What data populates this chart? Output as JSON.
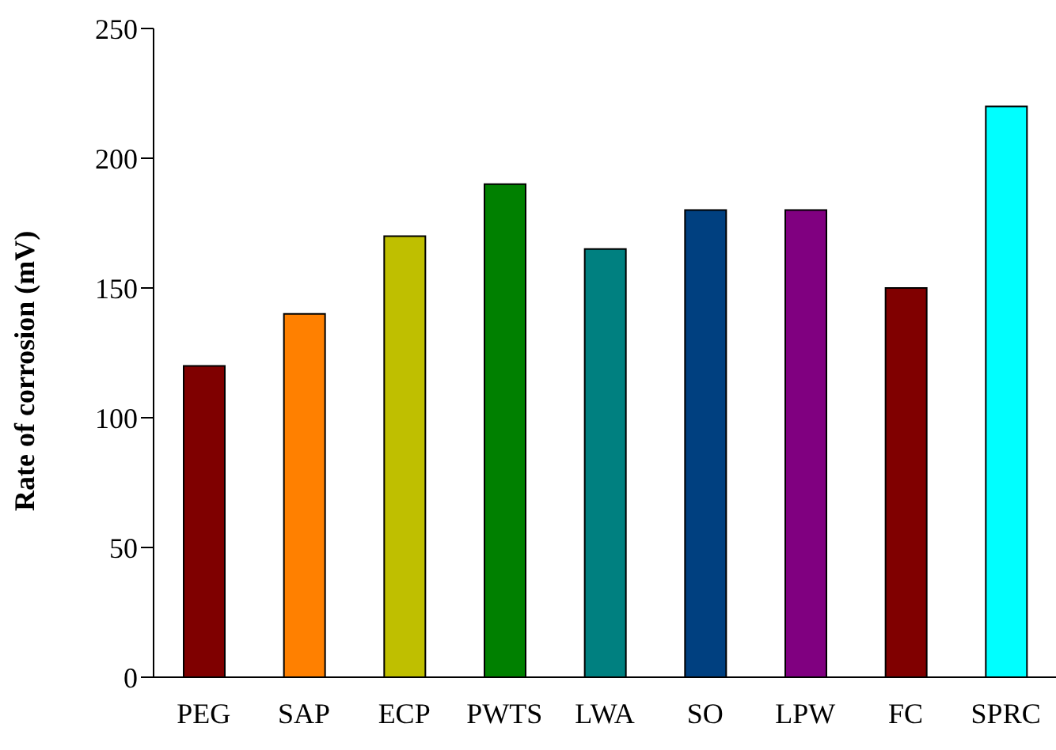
{
  "chart_data": {
    "type": "bar",
    "ylabel": "Rate of corrosion (mV)",
    "categories": [
      "PEG",
      "SAP",
      "ECP",
      "PWTS",
      "LWA",
      "SO",
      "LPW",
      "FC",
      "SPRC"
    ],
    "values": [
      120,
      140,
      170,
      190,
      165,
      180,
      180,
      150,
      220
    ],
    "colors": [
      "#7f0000",
      "#ff8000",
      "#bfbf00",
      "#008000",
      "#008080",
      "#004080",
      "#800080",
      "#800000",
      "#00ffff"
    ],
    "ylim": [
      0,
      250
    ],
    "yticks": [
      0,
      50,
      100,
      150,
      200,
      250
    ]
  }
}
